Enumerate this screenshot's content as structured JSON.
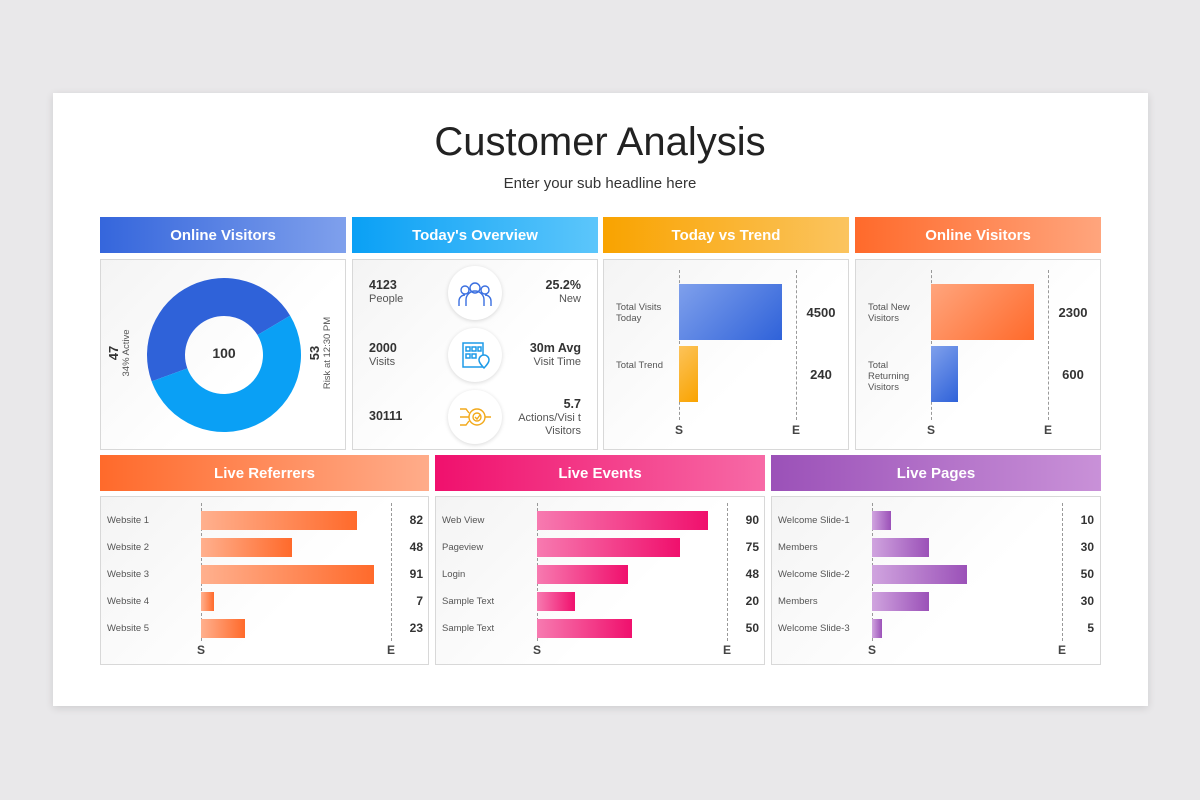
{
  "title": "Customer Analysis",
  "subtitle": "Enter your sub headline here",
  "panels": {
    "online_visitors_1": {
      "header": "Online Visitors",
      "total": "100",
      "left_value": "47",
      "left_label": "34% Active",
      "right_value": "53",
      "right_label": "Risk at 12:30 PM",
      "segments": [
        {
          "value": 47,
          "color": "#2f62d9"
        },
        {
          "value": 53,
          "color": "#0aa0f5"
        }
      ]
    },
    "todays_overview": {
      "header": "Today's Overview",
      "rows": [
        {
          "left_num": "4123",
          "left_label": "People",
          "icon": "people-group-icon",
          "right_num": "25.2%",
          "right_label": "New"
        },
        {
          "left_num": "2000",
          "left_label": "Visits",
          "icon": "building-location-icon",
          "right_num": "30m Avg",
          "right_label": "Visit Time"
        },
        {
          "left_num": "30111",
          "left_label": "",
          "icon": "target-network-icon",
          "right_num": "5.7",
          "right_label": "Actions/Visi t Visitors"
        }
      ]
    },
    "today_vs_trend": {
      "header": "Today vs Trend",
      "start": "S",
      "end": "E",
      "bars": [
        {
          "label": "Total Visits Today",
          "value": 4500,
          "display": "4500",
          "color": "blue"
        },
        {
          "label": "Total Trend",
          "value": 240,
          "display": "240",
          "color": "yellow"
        }
      ]
    },
    "online_visitors_2": {
      "header": "Online Visitors",
      "start": "S",
      "end": "E",
      "bars": [
        {
          "label": "Total New Visitors",
          "value": 2300,
          "display": "2300",
          "color": "orange"
        },
        {
          "label": "Total Returning Visitors",
          "value": 600,
          "display": "600",
          "color": "blue"
        }
      ]
    },
    "live_referrers": {
      "header": "Live Referrers",
      "start": "S",
      "end": "E",
      "bars": [
        {
          "label": "Website 1",
          "value": 82
        },
        {
          "label": "Website 2",
          "value": 48
        },
        {
          "label": "Website 3",
          "value": 91
        },
        {
          "label": "Website 4",
          "value": 7
        },
        {
          "label": "Website 5",
          "value": 23
        }
      ]
    },
    "live_events": {
      "header": "Live Events",
      "start": "S",
      "end": "E",
      "bars": [
        {
          "label": "Web View",
          "value": 90
        },
        {
          "label": "Pageview",
          "value": 75
        },
        {
          "label": "Login",
          "value": 48
        },
        {
          "label": "Sample Text",
          "value": 20
        },
        {
          "label": "Sample Text",
          "value": 50
        }
      ]
    },
    "live_pages": {
      "header": "Live Pages",
      "start": "S",
      "end": "E",
      "bars": [
        {
          "label": "Welcome Slide-1",
          "value": 10
        },
        {
          "label": "Members",
          "value": 30
        },
        {
          "label": "Welcome Slide-2",
          "value": 50
        },
        {
          "label": "Members",
          "value": 30
        },
        {
          "label": "Welcome Slide-3",
          "value": 5
        }
      ]
    }
  },
  "colors": {
    "blue": "#2f62d9",
    "light_blue": "#0aa0f5",
    "yellow": "#f9a300",
    "orange": "#ff6a2b",
    "pink": "#f0106d",
    "purple": "#9b51b8"
  }
}
